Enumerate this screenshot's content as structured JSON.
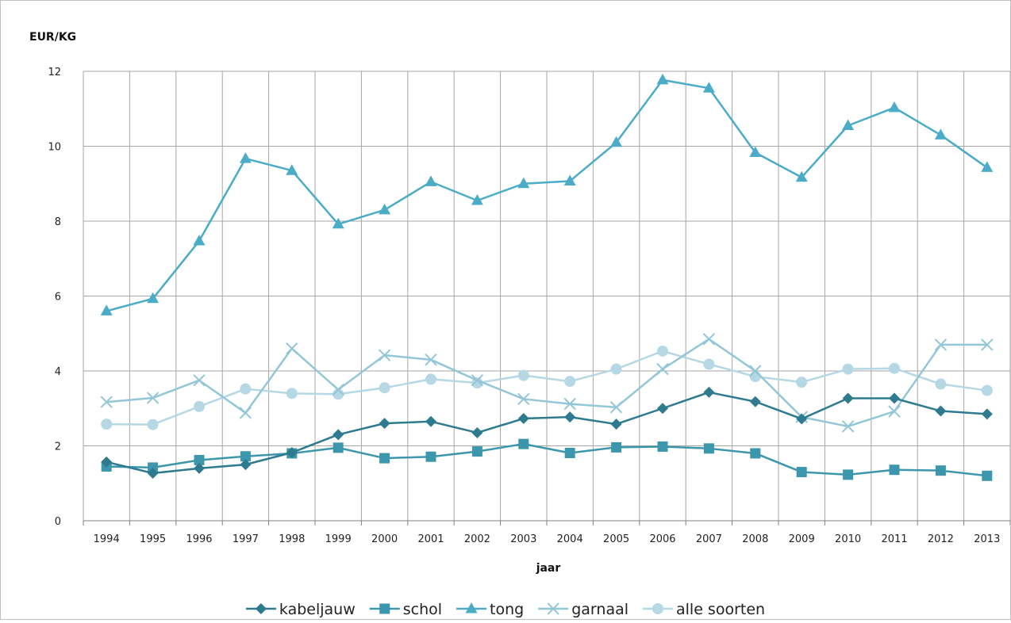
{
  "chart_data": {
    "type": "line",
    "title": "",
    "xlabel": "jaar",
    "ylabel": "EUR/KG",
    "ylim": [
      0,
      12
    ],
    "yticks": [
      0,
      2,
      4,
      6,
      8,
      10,
      12
    ],
    "grid": true,
    "legend_position": "bottom",
    "categories": [
      "1994",
      "1995",
      "1996",
      "1997",
      "1998",
      "1999",
      "2000",
      "2001",
      "2002",
      "2003",
      "2004",
      "2005",
      "2006",
      "2007",
      "2008",
      "2009",
      "2010",
      "2011",
      "2012",
      "2013"
    ],
    "series": [
      {
        "name": "kabeljauw",
        "marker": "diamond",
        "color": "#2e7a8f",
        "values": [
          1.57,
          1.27,
          1.4,
          1.5,
          1.82,
          2.3,
          2.6,
          2.65,
          2.35,
          2.73,
          2.77,
          2.58,
          3.0,
          3.43,
          3.18,
          2.72,
          3.27,
          3.27,
          2.93,
          2.85
        ]
      },
      {
        "name": "schol",
        "marker": "square",
        "color": "#3c97ad",
        "values": [
          1.45,
          1.42,
          1.62,
          1.72,
          1.8,
          1.95,
          1.67,
          1.71,
          1.85,
          2.05,
          1.81,
          1.96,
          1.98,
          1.93,
          1.8,
          1.3,
          1.23,
          1.36,
          1.34,
          1.2
        ]
      },
      {
        "name": "tong",
        "marker": "triangle",
        "color": "#4aacc6",
        "values": [
          5.6,
          5.93,
          7.47,
          9.67,
          9.35,
          7.92,
          8.3,
          9.05,
          8.55,
          9.0,
          9.07,
          10.1,
          11.77,
          11.55,
          9.83,
          9.17,
          10.55,
          11.03,
          10.3,
          9.43
        ]
      },
      {
        "name": "garnaal",
        "marker": "x",
        "color": "#93c7d8",
        "values": [
          3.17,
          3.28,
          3.75,
          2.88,
          4.6,
          3.5,
          4.42,
          4.3,
          3.75,
          3.25,
          3.12,
          3.03,
          4.05,
          4.85,
          4.0,
          2.77,
          2.52,
          2.92,
          4.7,
          4.7
        ]
      },
      {
        "name": "alle soorten",
        "marker": "circle",
        "color": "#b6d8e4",
        "values": [
          2.58,
          2.57,
          3.05,
          3.52,
          3.4,
          3.38,
          3.55,
          3.78,
          3.68,
          3.88,
          3.72,
          4.05,
          4.53,
          4.18,
          3.85,
          3.7,
          4.05,
          4.07,
          3.65,
          3.48
        ]
      }
    ]
  }
}
